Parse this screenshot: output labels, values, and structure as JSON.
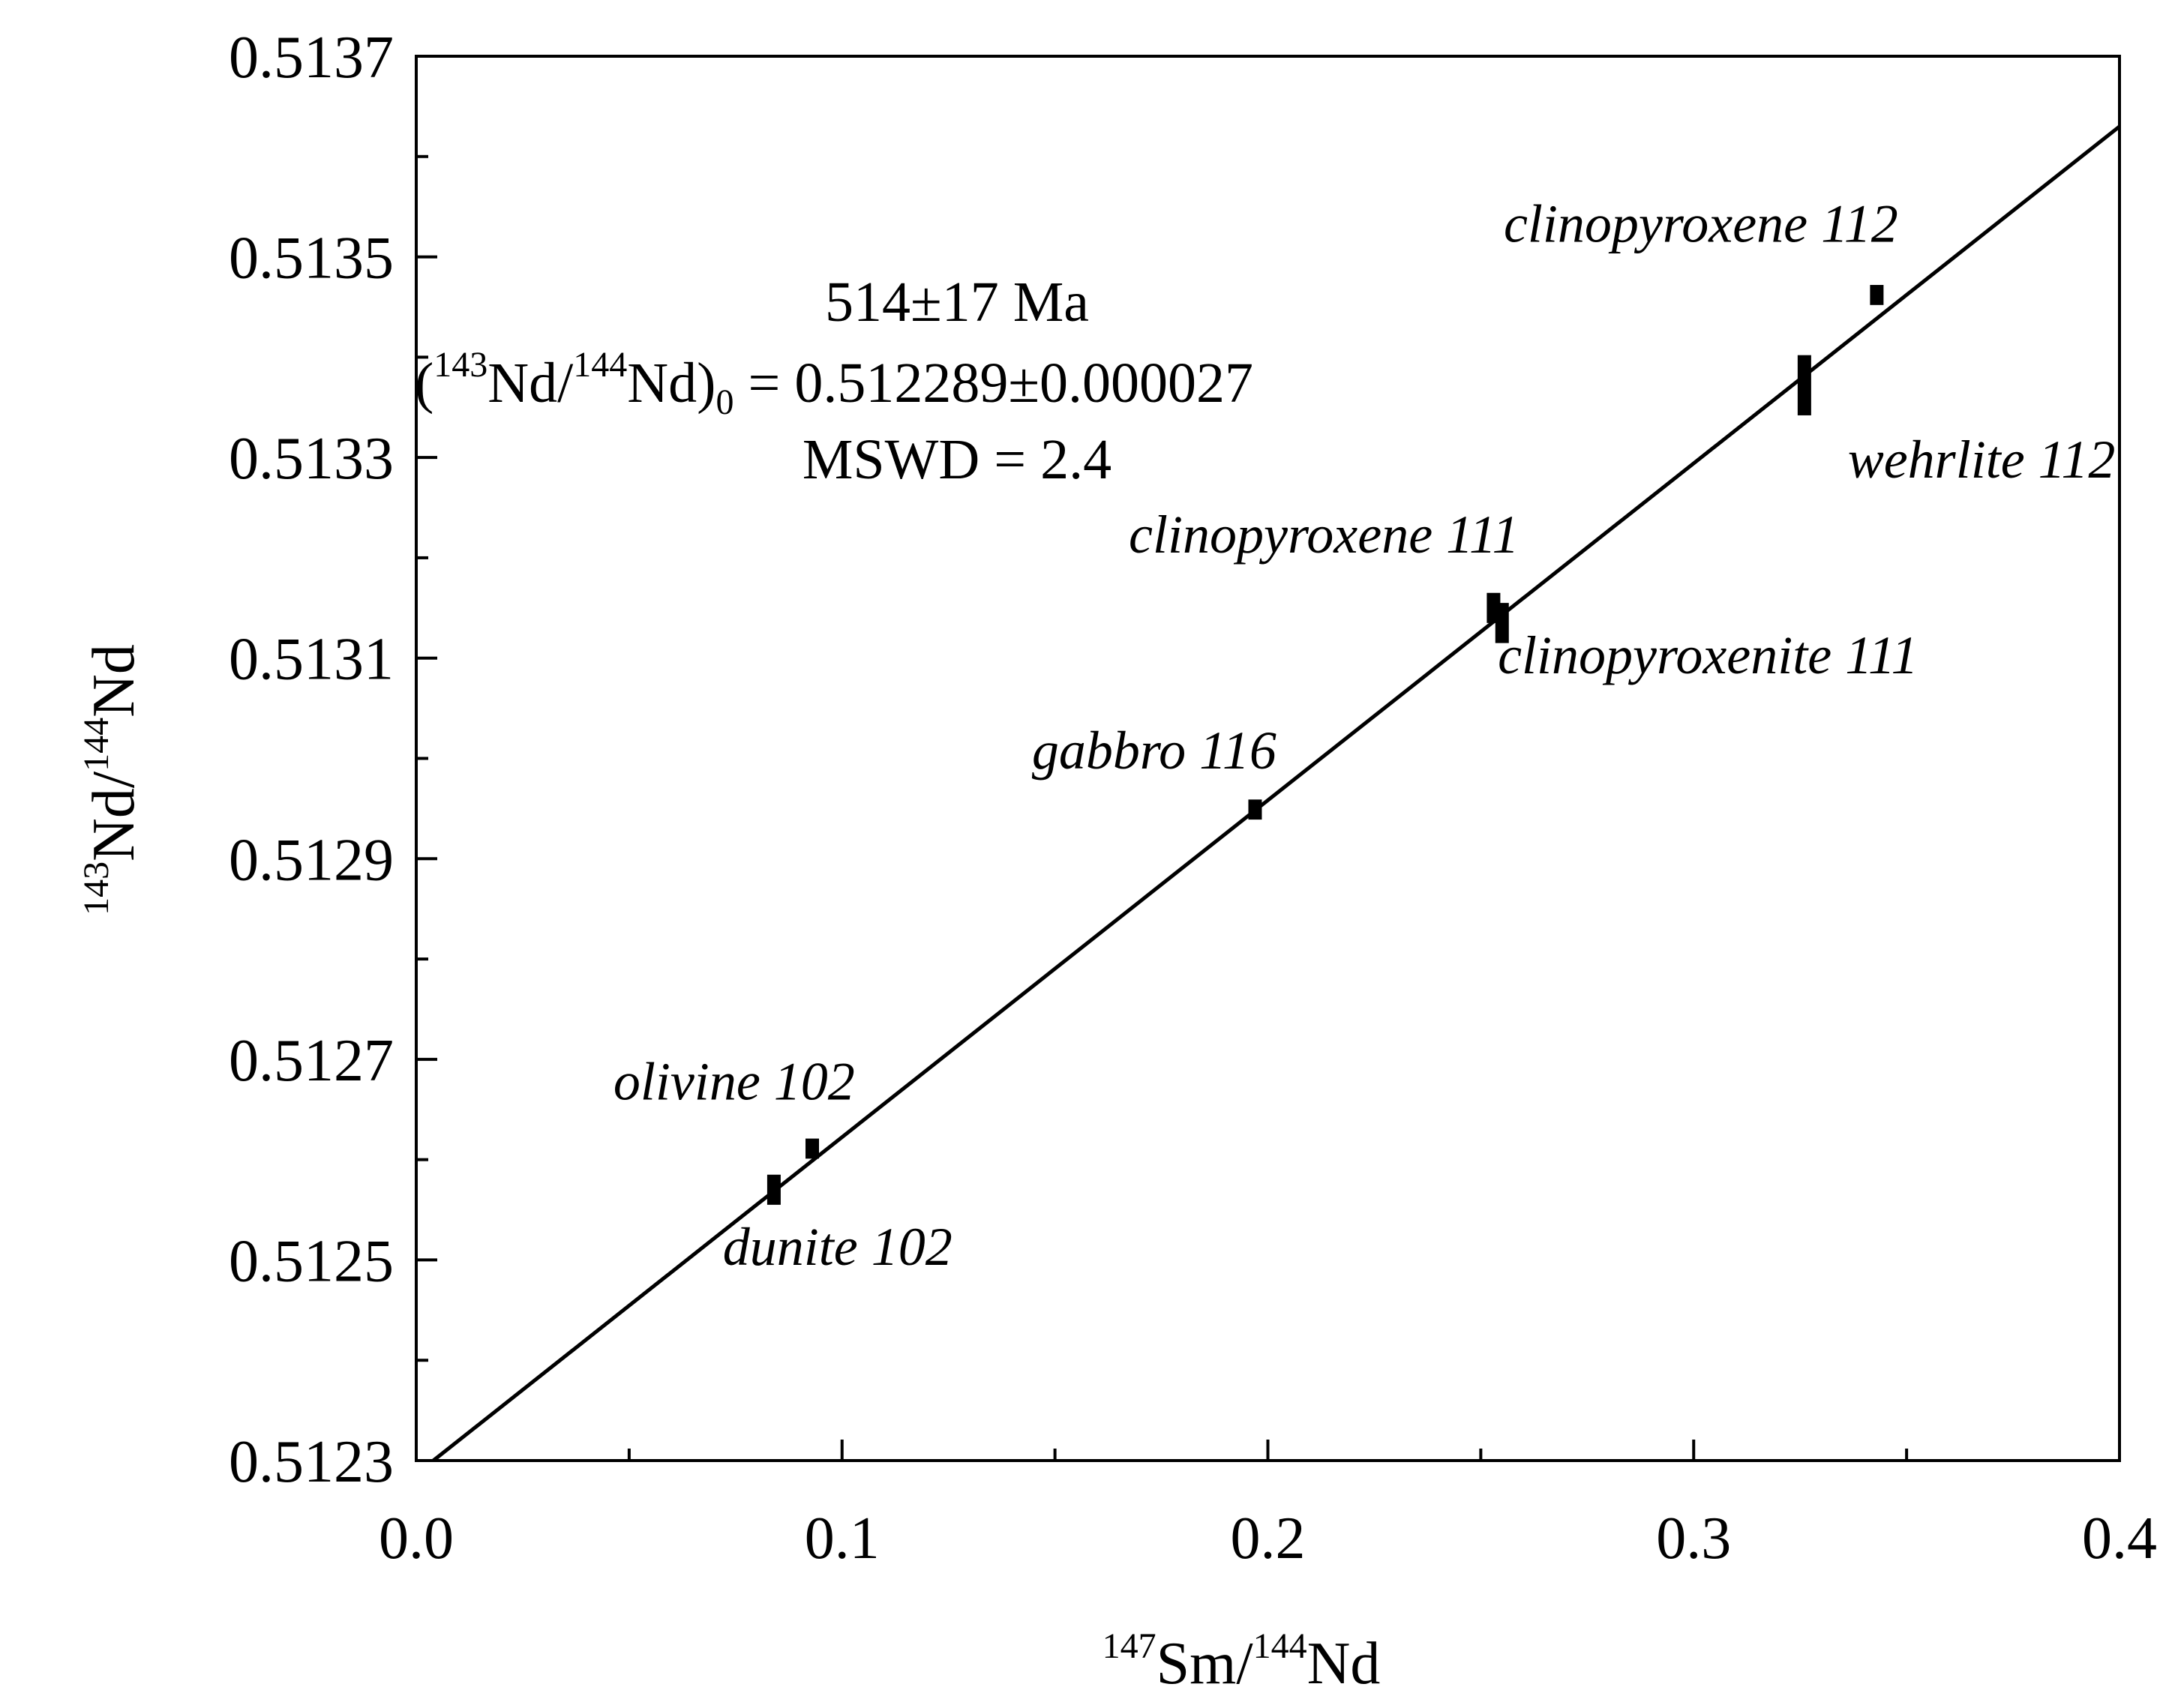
{
  "chart_data": {
    "type": "scatter",
    "title": "",
    "xlabel": {
      "sup1": "147",
      "base1": "Sm/",
      "sup2": "144",
      "base2": "Nd"
    },
    "ylabel": {
      "sup1": "143",
      "base1": "Nd/",
      "sup2": "144",
      "base2": "Nd"
    },
    "xlim": [
      0.0,
      0.4
    ],
    "ylim": [
      0.5123,
      0.5137
    ],
    "x_ticks": [
      0.0,
      0.1,
      0.2,
      0.3,
      0.4
    ],
    "x_tick_labels": [
      "0.0",
      "0.1",
      "0.2",
      "0.3",
      "0.4"
    ],
    "x_minor_ticks": [
      0.05,
      0.15,
      0.25,
      0.35
    ],
    "y_ticks": [
      0.5123,
      0.5125,
      0.5127,
      0.5129,
      0.5131,
      0.5133,
      0.5135,
      0.5137
    ],
    "y_tick_labels": [
      "0.5123",
      "0.5125",
      "0.5127",
      "0.5129",
      "0.5131",
      "0.5133",
      "0.5135",
      "0.5137"
    ],
    "y_minor_ticks": [
      0.5124,
      0.5126,
      0.5128,
      0.513,
      0.5132,
      0.5134,
      0.5136
    ],
    "isochron": {
      "x_start": 0.004,
      "y_start": 0.5123,
      "x_end": 0.4,
      "y_end": 0.51363
    },
    "points": [
      {
        "name": "dunite 102",
        "x": 0.084,
        "y": 0.51257,
        "err": 1.5e-05,
        "label": "dunite 102",
        "label_x": 0.072,
        "label_y": 0.512495,
        "anchor": "start"
      },
      {
        "name": "olivine 102",
        "x": 0.093,
        "y": 0.512611,
        "err": 1e-05,
        "label": "olivine 102",
        "label_x": 0.103,
        "label_y": 0.51266,
        "anchor": "end"
      },
      {
        "name": "gabbro 116",
        "x": 0.197,
        "y": 0.512949,
        "err": 1e-05,
        "label": "gabbro 116",
        "label_x": 0.202,
        "label_y": 0.51299,
        "anchor": "end"
      },
      {
        "name": "clinopyroxene 111",
        "x": 0.253,
        "y": 0.51315,
        "err": 1.5e-05,
        "label": "clinopyroxene 111",
        "label_x": 0.259,
        "label_y": 0.513205,
        "anchor": "end"
      },
      {
        "name": "clinopyroxenite 111",
        "x": 0.255,
        "y": 0.513135,
        "err": 2e-05,
        "label": "clinopyroxenite 111",
        "label_x": 0.254,
        "label_y": 0.513085,
        "anchor": "start"
      },
      {
        "name": "wehrlite 112",
        "x": 0.326,
        "y": 0.513372,
        "err": 3e-05,
        "label": "wehrlite 112",
        "label_x": 0.399,
        "label_y": 0.51328,
        "anchor": "end"
      },
      {
        "name": "clinopyroxene 112",
        "x": 0.343,
        "y": 0.513462,
        "err": 1e-05,
        "label": "clinopyroxene 112",
        "label_x": 0.348,
        "label_y": 0.513515,
        "anchor": "end"
      }
    ],
    "annotations": {
      "age": "514±17 Ma",
      "initial_ratio": {
        "open": "(",
        "sup1": "143",
        "mid1": "Nd/",
        "sup2": "144",
        "mid2": "Nd)",
        "sub": "0",
        "value": " = 0.512289±0.000027"
      },
      "mswd": "MSWD = 2.4"
    }
  }
}
